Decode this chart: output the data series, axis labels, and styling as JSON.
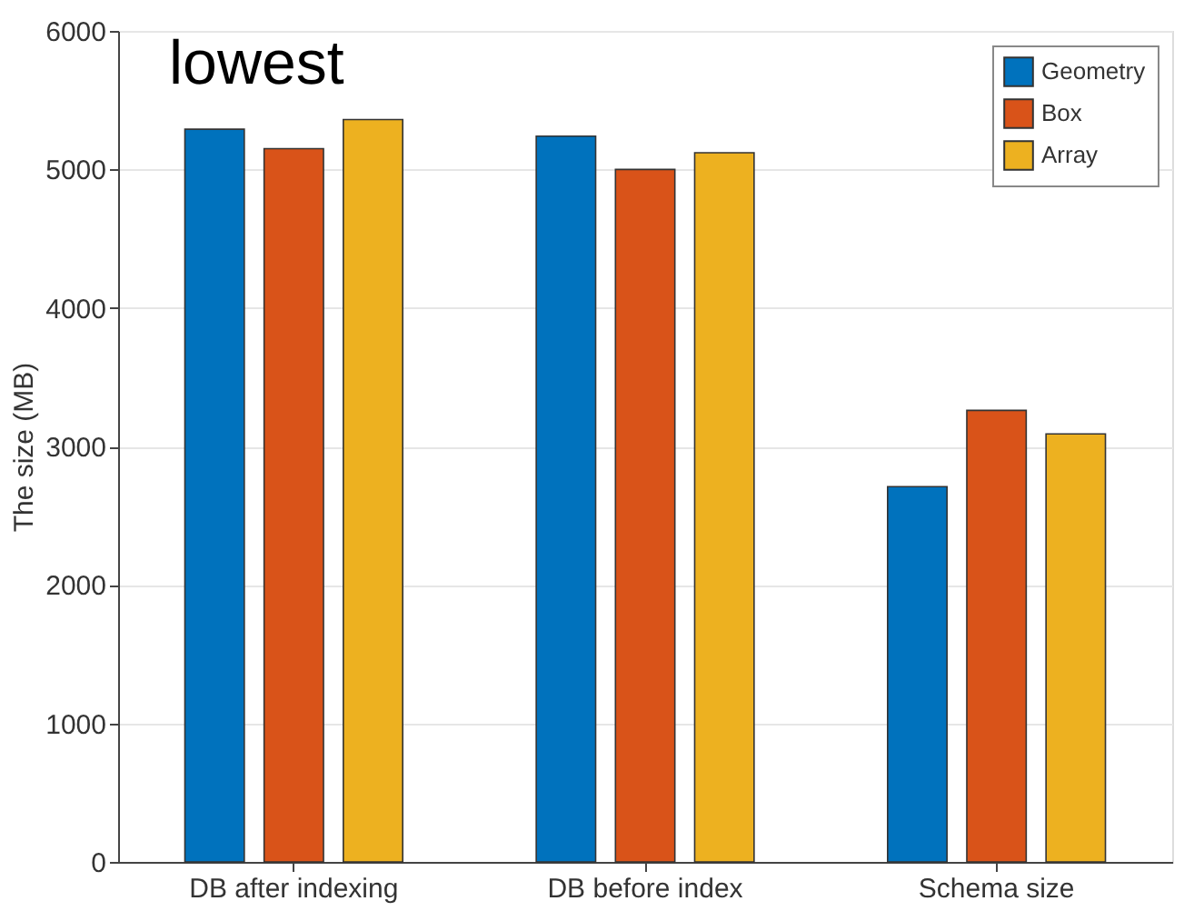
{
  "chart_data": {
    "type": "bar",
    "ylabel": "The size (MB)",
    "categories": [
      "DB after indexing",
      "DB before index",
      "Schema size"
    ],
    "series": [
      {
        "name": "Geometry",
        "color": "#0072bd",
        "values": [
          5290,
          5240,
          2710
        ]
      },
      {
        "name": "Box",
        "color": "#d95319",
        "values": [
          5150,
          5000,
          3260
        ]
      },
      {
        "name": "Array",
        "color": "#edb120",
        "values": [
          5360,
          5120,
          3090
        ]
      }
    ],
    "ylim": [
      0,
      6000
    ],
    "yticks": [
      0,
      1000,
      2000,
      3000,
      4000,
      5000,
      6000
    ],
    "grid": "y",
    "legend": "top right",
    "annotations": [
      "lowest"
    ]
  }
}
